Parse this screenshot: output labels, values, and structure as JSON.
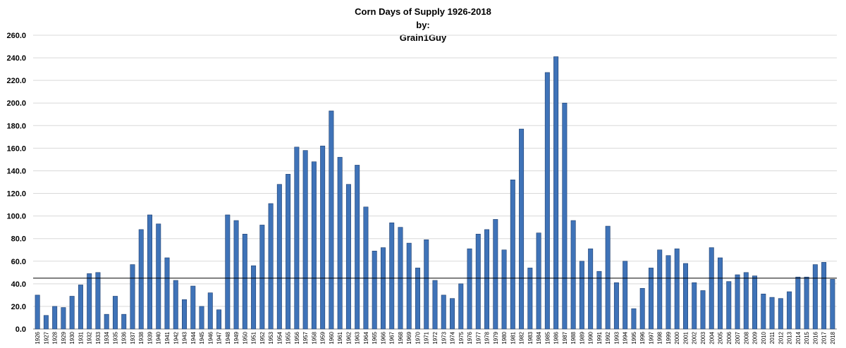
{
  "chart_data": {
    "type": "bar",
    "title_lines": [
      "Corn  Days of Supply 1926-2018",
      "by:",
      "Grain1Guy"
    ],
    "xlabel": "",
    "ylabel": "",
    "ylim": [
      0,
      260
    ],
    "yticks": [
      "0.0",
      "20.0",
      "40.0",
      "60.0",
      "80.0",
      "100.0",
      "120.0",
      "140.0",
      "160.0",
      "180.0",
      "200.0",
      "220.0",
      "240.0",
      "260.0"
    ],
    "grid": true,
    "legend": "none",
    "reference_line": 45,
    "bar_color": "#3f73b8",
    "bar_edge_color": "#1f3f6e",
    "reference_line_color": "#000000",
    "categories": [
      "1926",
      "1927",
      "1928",
      "1929",
      "1930",
      "1931",
      "1932",
      "1933",
      "1934",
      "1935",
      "1936",
      "1937",
      "1938",
      "1939",
      "1940",
      "1941",
      "1942",
      "1943",
      "1944",
      "1945",
      "1946",
      "1947",
      "1948",
      "1949",
      "1950",
      "1951",
      "1952",
      "1953",
      "1954",
      "1955",
      "1956",
      "1957",
      "1958",
      "1959",
      "1960",
      "1961",
      "1962",
      "1963",
      "1964",
      "1965",
      "1966",
      "1967",
      "1968",
      "1969",
      "1970",
      "1971",
      "1972",
      "1973",
      "1974",
      "1975",
      "1976",
      "1977",
      "1978",
      "1979",
      "1980",
      "1981",
      "1982",
      "1983",
      "1984",
      "1985",
      "1986",
      "1987",
      "1988",
      "1989",
      "1990",
      "1991",
      "1992",
      "1993",
      "1994",
      "1995",
      "1996",
      "1997",
      "1998",
      "1999",
      "2000",
      "2001",
      "2002",
      "2003",
      "2004",
      "2005",
      "2006",
      "2007",
      "2008",
      "2009",
      "2010",
      "2011",
      "2012",
      "2013",
      "2014",
      "2015",
      "2016",
      "2017",
      "2018"
    ],
    "values": [
      30,
      12,
      20,
      19,
      29,
      39,
      49,
      50,
      13,
      29,
      13,
      57,
      88,
      101,
      93,
      63,
      43,
      26,
      38,
      20,
      32,
      17,
      101,
      96,
      84,
      56,
      92,
      111,
      128,
      137,
      161,
      158,
      148,
      162,
      193,
      152,
      128,
      145,
      108,
      69,
      72,
      94,
      90,
      76,
      54,
      79,
      43,
      30,
      27,
      40,
      71,
      84,
      88,
      97,
      70,
      132,
      177,
      54,
      85,
      227,
      241,
      200,
      96,
      60,
      71,
      51,
      91,
      41,
      60,
      18,
      36,
      54,
      70,
      65,
      71,
      58,
      41,
      34,
      72,
      63,
      42,
      48,
      50,
      47,
      31,
      28,
      27,
      33,
      46,
      46,
      57,
      59,
      44
    ]
  }
}
